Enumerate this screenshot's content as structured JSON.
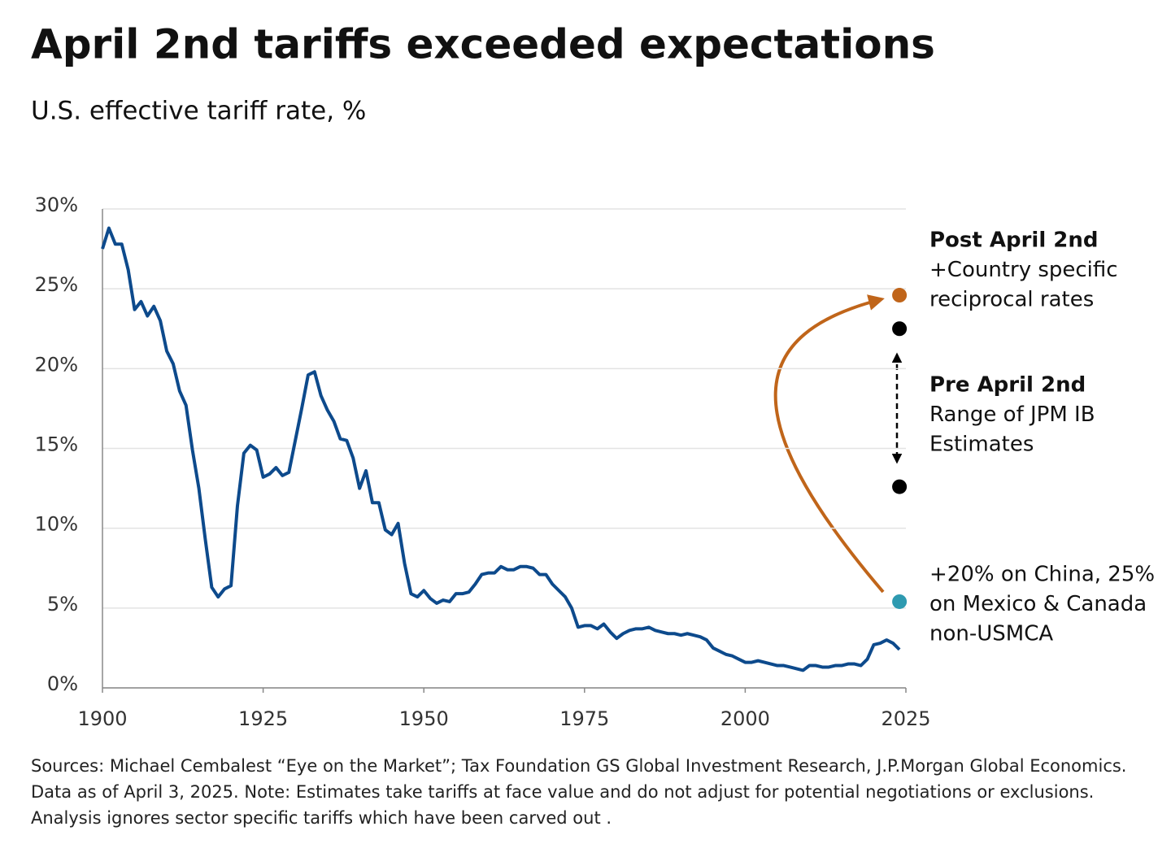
{
  "chart_data": {
    "type": "line",
    "title": "April 2nd tariffs exceeded expectations",
    "subtitle": "U.S. effective tariff rate, %",
    "color": "#0d4a8c",
    "x": [
      1900,
      1901,
      1902,
      1903,
      1904,
      1905,
      1906,
      1907,
      1908,
      1909,
      1910,
      1911,
      1912,
      1913,
      1914,
      1915,
      1916,
      1917,
      1918,
      1919,
      1920,
      1921,
      1922,
      1923,
      1924,
      1925,
      1926,
      1927,
      1928,
      1929,
      1930,
      1931,
      1932,
      1933,
      1934,
      1935,
      1936,
      1937,
      1938,
      1939,
      1940,
      1941,
      1942,
      1943,
      1944,
      1945,
      1946,
      1947,
      1948,
      1949,
      1950,
      1951,
      1952,
      1953,
      1954,
      1955,
      1956,
      1957,
      1958,
      1959,
      1960,
      1961,
      1962,
      1963,
      1964,
      1965,
      1966,
      1967,
      1968,
      1969,
      1970,
      1971,
      1972,
      1973,
      1974,
      1975,
      1976,
      1977,
      1978,
      1979,
      1980,
      1981,
      1982,
      1983,
      1984,
      1985,
      1986,
      1987,
      1988,
      1989,
      1990,
      1991,
      1992,
      1993,
      1994,
      1995,
      1996,
      1997,
      1998,
      1999,
      2000,
      2001,
      2002,
      2003,
      2004,
      2005,
      2006,
      2007,
      2008,
      2009,
      2010,
      2011,
      2012,
      2013,
      2014,
      2015,
      2016,
      2017,
      2018,
      2019,
      2020,
      2021,
      2022,
      2023,
      2024
    ],
    "values": [
      27.5,
      28.8,
      27.8,
      27.8,
      26.2,
      23.7,
      24.2,
      23.3,
      23.9,
      23.0,
      21.1,
      20.3,
      18.6,
      17.7,
      14.9,
      12.5,
      9.3,
      6.3,
      5.7,
      6.2,
      6.4,
      11.4,
      14.7,
      15.2,
      14.9,
      13.2,
      13.4,
      13.8,
      13.3,
      13.5,
      15.5,
      17.5,
      19.6,
      19.8,
      18.3,
      17.4,
      16.7,
      15.6,
      15.5,
      14.4,
      12.5,
      13.6,
      11.6,
      11.6,
      9.9,
      9.6,
      10.3,
      7.8,
      5.9,
      5.7,
      6.1,
      5.6,
      5.3,
      5.5,
      5.4,
      5.9,
      5.9,
      6.0,
      6.5,
      7.1,
      7.2,
      7.2,
      7.6,
      7.4,
      7.4,
      7.6,
      7.6,
      7.5,
      7.1,
      7.1,
      6.5,
      6.1,
      5.7,
      5.0,
      3.8,
      3.9,
      3.9,
      3.7,
      4.0,
      3.5,
      3.1,
      3.4,
      3.6,
      3.7,
      3.7,
      3.8,
      3.6,
      3.5,
      3.4,
      3.4,
      3.3,
      3.4,
      3.3,
      3.2,
      3.0,
      2.5,
      2.3,
      2.1,
      2.0,
      1.8,
      1.6,
      1.6,
      1.7,
      1.6,
      1.5,
      1.4,
      1.4,
      1.3,
      1.2,
      1.1,
      1.4,
      1.4,
      1.3,
      1.3,
      1.4,
      1.4,
      1.5,
      1.5,
      1.4,
      1.8,
      2.7,
      2.8,
      3.0,
      2.8,
      2.4
    ],
    "points": [
      {
        "x": 2024,
        "value": 24.6,
        "color": "#c0651a"
      },
      {
        "x": 2024,
        "value": 22.5,
        "color": "#000000"
      },
      {
        "x": 2024,
        "value": 12.6,
        "color": "#000000"
      },
      {
        "x": 2024,
        "value": 5.4,
        "color": "#2e9ab0"
      }
    ],
    "annotations": [
      {
        "title": "Post April 2nd",
        "lines": [
          "+Country specific",
          "reciprocal rates"
        ],
        "color": "#c0651a"
      },
      {
        "title": "Pre April 2nd",
        "lines": [
          "Range of JPM IB",
          "Estimates"
        ],
        "color": "#000000"
      },
      {
        "lines": [
          "+20% on China, 25%",
          "on Mexico & Canada",
          "non-USMCA"
        ],
        "color": "#2e9ab0"
      }
    ],
    "xlim": [
      1900,
      2025
    ],
    "xticks": [
      1900,
      1925,
      1950,
      1975,
      2000,
      2025
    ],
    "ylim": [
      0,
      30
    ],
    "yticks": [
      {
        "value": 0,
        "label": "0%"
      },
      {
        "value": 5,
        "label": "5%"
      },
      {
        "value": 10,
        "label": "10%"
      },
      {
        "value": 15,
        "label": "15%"
      },
      {
        "value": 20,
        "label": "20%"
      },
      {
        "value": 25,
        "label": "25%"
      },
      {
        "value": 30,
        "label": "30%"
      }
    ],
    "grid": true,
    "footnote": [
      "Sources: Michael Cembalest “Eye on the Market”; Tax Foundation GS Global Investment Research, J.P.Morgan Global Economics.",
      "Data as of April 3, 2025. Note: Estimates take tariffs at face value and do not adjust for potential negotiations or exclusions.",
      "Analysis ignores sector specific tariffs which have been carved out ."
    ]
  }
}
